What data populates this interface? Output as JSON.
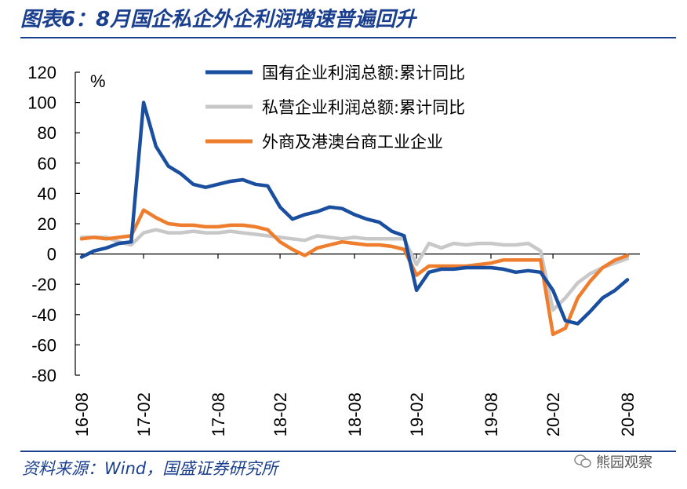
{
  "header": {
    "title": "图表6：8月国企私企外企利润增速普遍回升"
  },
  "footer": {
    "source": "资料来源：Wind，国盛证券研究所",
    "watermark": "熊园观察"
  },
  "chart_data": {
    "type": "line",
    "unit": "%",
    "x_ticks": [
      "16-08",
      "17-02",
      "17-08",
      "18-02",
      "18-08",
      "19-02",
      "19-08",
      "20-02",
      "20-08"
    ],
    "ylim": [
      -80,
      120
    ],
    "y_ticks": [
      -80,
      -60,
      -40,
      -20,
      0,
      20,
      40,
      60,
      80,
      100,
      120
    ],
    "grid": false,
    "legend_position": "top-right",
    "x": [
      "16-08",
      "16-09",
      "16-10",
      "16-11",
      "16-12",
      "17-02",
      "17-03",
      "17-04",
      "17-05",
      "17-06",
      "17-07",
      "17-08",
      "17-09",
      "17-10",
      "17-11",
      "17-12",
      "18-02",
      "18-03",
      "18-04",
      "18-05",
      "18-06",
      "18-07",
      "18-08",
      "18-09",
      "18-10",
      "18-11",
      "18-12",
      "19-02",
      "19-03",
      "19-04",
      "19-05",
      "19-06",
      "19-07",
      "19-08",
      "19-09",
      "19-10",
      "19-11",
      "19-12",
      "20-02",
      "20-03",
      "20-04",
      "20-05",
      "20-06",
      "20-07",
      "20-08"
    ],
    "series": [
      {
        "name": "国有企业利润总额:累计同比",
        "color": "#1a4e9e",
        "values": [
          -2,
          2,
          4,
          7,
          8,
          100,
          71,
          58,
          53,
          46,
          44,
          46,
          48,
          49,
          46,
          45,
          31,
          23,
          26,
          28,
          31,
          30,
          26,
          23,
          21,
          15,
          12,
          -24,
          -12,
          -10,
          -10,
          -9,
          -9,
          -9,
          -10,
          -12,
          -11,
          -12,
          -24,
          -44,
          -46,
          -38,
          -29,
          -24,
          -17
        ]
      },
      {
        "name": "私营企业利润总额:累计同比",
        "color": "#c8c8c8",
        "values": [
          11,
          11,
          11,
          8,
          6,
          14,
          16,
          14,
          14,
          15,
          14,
          14,
          15,
          14,
          13,
          12,
          11,
          10,
          9,
          12,
          11,
          10,
          11,
          10,
          10,
          10,
          10,
          -7,
          7,
          4,
          7,
          6,
          7,
          7,
          6,
          6,
          7,
          2,
          -37,
          -29,
          -19,
          -13,
          -9,
          -6,
          -3
        ]
      },
      {
        "name": "外商及港澳台商工业企业",
        "color": "#ef7d2e",
        "values": [
          10,
          11,
          10,
          11,
          12,
          29,
          24,
          20,
          19,
          19,
          18,
          18,
          19,
          19,
          18,
          16,
          8,
          3,
          -1,
          4,
          6,
          8,
          7,
          6,
          6,
          5,
          3,
          -14,
          -8,
          -8,
          -8,
          -8,
          -7,
          -6,
          -4,
          -4,
          -4,
          -4,
          -53,
          -49,
          -29,
          -18,
          -9,
          -4,
          -1
        ]
      }
    ]
  }
}
